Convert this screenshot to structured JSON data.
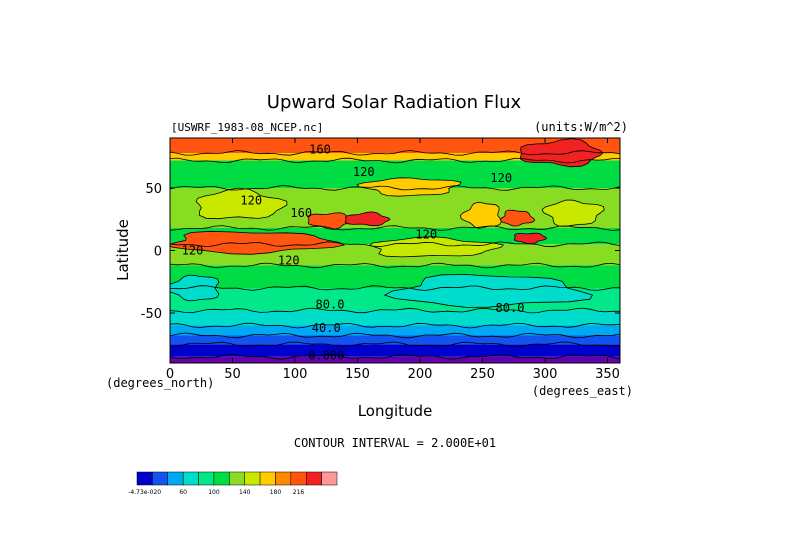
{
  "chart_data": {
    "type": "heatmap",
    "title": "Upward Solar Radiation Flux",
    "dataset_label": "[USWRF_1983-08_NCEP.nc]",
    "units_label": "(units:W/m^2)",
    "xlabel": "Longitude",
    "ylabel": "Latitude",
    "x_unit": "(degrees_east)",
    "y_unit": "(degrees_north)",
    "xlim": [
      0,
      360
    ],
    "ylim": [
      -90,
      90
    ],
    "x_ticks": [
      0,
      50,
      100,
      150,
      200,
      250,
      300,
      350
    ],
    "y_ticks": [
      50,
      0,
      -50
    ],
    "contour_interval_text": "CONTOUR INTERVAL = 2.000E+01",
    "contour_labels": [
      {
        "text": "160",
        "lon": 120,
        "lat": 81
      },
      {
        "text": "120",
        "lon": 155,
        "lat": 63
      },
      {
        "text": "120",
        "lon": 265,
        "lat": 58
      },
      {
        "text": "120",
        "lon": 65,
        "lat": 40
      },
      {
        "text": "160",
        "lon": 105,
        "lat": 30
      },
      {
        "text": "120",
        "lon": 205,
        "lat": 13
      },
      {
        "text": "120",
        "lon": 95,
        "lat": -8
      },
      {
        "text": "120",
        "lon": 18,
        "lat": 0
      },
      {
        "text": "80.0",
        "lon": 128,
        "lat": -43
      },
      {
        "text": "80.0",
        "lon": 272,
        "lat": -46
      },
      {
        "text": "40.0",
        "lon": 125,
        "lat": -62
      },
      {
        "text": "0.000",
        "lon": 125,
        "lat": -84
      }
    ],
    "colorbar": {
      "colors": [
        "#0000cd",
        "#0f55ee",
        "#00aaf2",
        "#00ddcc",
        "#00e888",
        "#00dd44",
        "#88dd22",
        "#c8e800",
        "#ffcc00",
        "#ff8800",
        "#ff5511",
        "#f22222",
        "#ff9999"
      ],
      "tick_labels": [
        "-4.73e-020",
        "60",
        "100",
        "140",
        "180",
        "216"
      ]
    },
    "bands": [
      {
        "lat": [
          -90,
          -85
        ],
        "color": "#6600aa"
      },
      {
        "lat": [
          -85,
          -75
        ],
        "color": "#0000cd"
      },
      {
        "lat": [
          -75,
          -68
        ],
        "color": "#0f55ee"
      },
      {
        "lat": [
          -68,
          -60
        ],
        "color": "#00aaf2"
      },
      {
        "lat": [
          -60,
          -48
        ],
        "color": "#00ddcc"
      },
      {
        "lat": [
          -48,
          -30
        ],
        "color": "#00e888"
      },
      {
        "lat": [
          -30,
          -12
        ],
        "color": "#00dd44"
      },
      {
        "lat": [
          -12,
          5
        ],
        "color": "#88dd22"
      },
      {
        "lat": [
          5,
          18
        ],
        "color": "#00dd44"
      },
      {
        "lat": [
          18,
          50
        ],
        "color": "#88dd22"
      },
      {
        "lat": [
          50,
          72
        ],
        "color": "#00dd44"
      },
      {
        "lat": [
          72,
          78
        ],
        "color": "#ffcc00"
      },
      {
        "lat": [
          78,
          90
        ],
        "color": "#ff5511"
      }
    ],
    "patches": [
      {
        "lon": [
          0,
          130
        ],
        "lat": [
          -2,
          15
        ],
        "color": "#ff5511"
      },
      {
        "lon": [
          110,
          145
        ],
        "lat": [
          18,
          30
        ],
        "color": "#ff5511"
      },
      {
        "lon": [
          140,
          175
        ],
        "lat": [
          20,
          30
        ],
        "color": "#f22222"
      },
      {
        "lon": [
          160,
          260
        ],
        "lat": [
          -5,
          10
        ],
        "color": "#c8e800"
      },
      {
        "lon": [
          155,
          230
        ],
        "lat": [
          44,
          58
        ],
        "color": "#ffcc00"
      },
      {
        "lon": [
          235,
          265
        ],
        "lat": [
          18,
          38
        ],
        "color": "#ffcc00"
      },
      {
        "lon": [
          265,
          290
        ],
        "lat": [
          20,
          32
        ],
        "color": "#ff5511"
      },
      {
        "lon": [
          275,
          300
        ],
        "lat": [
          6,
          14
        ],
        "color": "#f22222"
      },
      {
        "lon": [
          280,
          345
        ],
        "lat": [
          68,
          88
        ],
        "color": "#f22222"
      },
      {
        "lon": [
          20,
          90
        ],
        "lat": [
          25,
          48
        ],
        "color": "#c8e800"
      },
      {
        "lon": [
          300,
          345
        ],
        "lat": [
          20,
          40
        ],
        "color": "#c8e800"
      },
      {
        "lon": [
          0,
          40
        ],
        "lat": [
          -40,
          -20
        ],
        "color": "#00ddcc"
      },
      {
        "lon": [
          180,
          330
        ],
        "lat": [
          -45,
          -20
        ],
        "color": "#00ddcc"
      }
    ]
  }
}
